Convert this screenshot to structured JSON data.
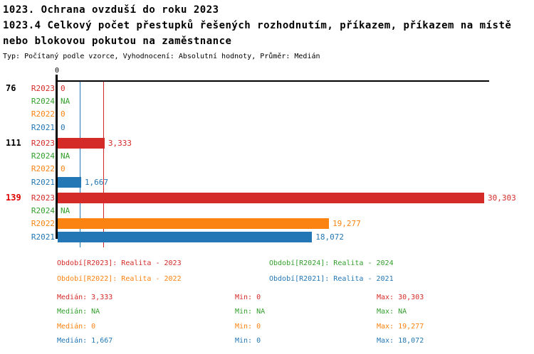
{
  "header": {
    "line1": "1023. Ochrana ovzduší do roku 2023",
    "line2": "1023.4 Celkový počet přestupků řešených rozhodnutím, příkazem, příkazem na místě",
    "line3": "nebo blokovou pokutou na zaměstnance",
    "meta": "Typ: Počítaný podle vzorce, Vyhodnocení: Absolutní hodnoty, Průměr: Medián"
  },
  "colors": {
    "R2023": "#d42b28",
    "R2024": "#33a02c",
    "R2022": "#fb8312",
    "R2021": "#2377b4",
    "group_label_highlight": "#e10000",
    "axis": "#000000"
  },
  "chart_data": {
    "type": "bar",
    "orientation": "horizontal",
    "title": "1023.4 Celkový počet přestupků řešených rozhodnutím, příkazem, příkazem na místě nebo blokovou pokutou na zaměstnance",
    "axis": {
      "min": 0,
      "max": 30303,
      "tick_labels": [
        "0"
      ]
    },
    "groups": [
      {
        "label": "76",
        "highlight": false,
        "rows": [
          {
            "series": "R2023",
            "value": 0,
            "display": "0"
          },
          {
            "series": "R2024",
            "value": null,
            "display": "NA"
          },
          {
            "series": "R2022",
            "value": 0,
            "display": "0"
          },
          {
            "series": "R2021",
            "value": 0,
            "display": "0"
          }
        ]
      },
      {
        "label": "111",
        "highlight": false,
        "rows": [
          {
            "series": "R2023",
            "value": 3333,
            "display": "3,333"
          },
          {
            "series": "R2024",
            "value": null,
            "display": "NA"
          },
          {
            "series": "R2022",
            "value": 0,
            "display": "0"
          },
          {
            "series": "R2021",
            "value": 1667,
            "display": "1,667"
          }
        ]
      },
      {
        "label": "139",
        "highlight": true,
        "rows": [
          {
            "series": "R2023",
            "value": 30303,
            "display": "30,303"
          },
          {
            "series": "R2024",
            "value": null,
            "display": "NA"
          },
          {
            "series": "R2022",
            "value": 19277,
            "display": "19,277"
          },
          {
            "series": "R2021",
            "value": 18072,
            "display": "18,072"
          }
        ]
      }
    ],
    "median_lines": [
      {
        "series": "R2023",
        "value": 3333
      },
      {
        "series": "R2021",
        "value": 1667
      }
    ]
  },
  "legend": {
    "items": [
      {
        "series": "R2023",
        "text": "Období[R2023]: Realita - 2023"
      },
      {
        "series": "R2024",
        "text": "Období[R2024]: Realita - 2024"
      },
      {
        "series": "R2022",
        "text": "Období[R2022]: Realita - 2022"
      },
      {
        "series": "R2021",
        "text": "Období[R2021]: Realita - 2021"
      }
    ]
  },
  "stats": {
    "labels": {
      "median": "Medián",
      "min": "Min",
      "max": "Max"
    },
    "rows": [
      {
        "series": "R2023",
        "median": "3,333",
        "min": "0",
        "max": "30,303"
      },
      {
        "series": "R2024",
        "median": "NA",
        "min": "NA",
        "max": "NA"
      },
      {
        "series": "R2022",
        "median": "0",
        "min": "0",
        "max": "19,277"
      },
      {
        "series": "R2021",
        "median": "1,667",
        "min": "0",
        "max": "18,072"
      }
    ]
  }
}
